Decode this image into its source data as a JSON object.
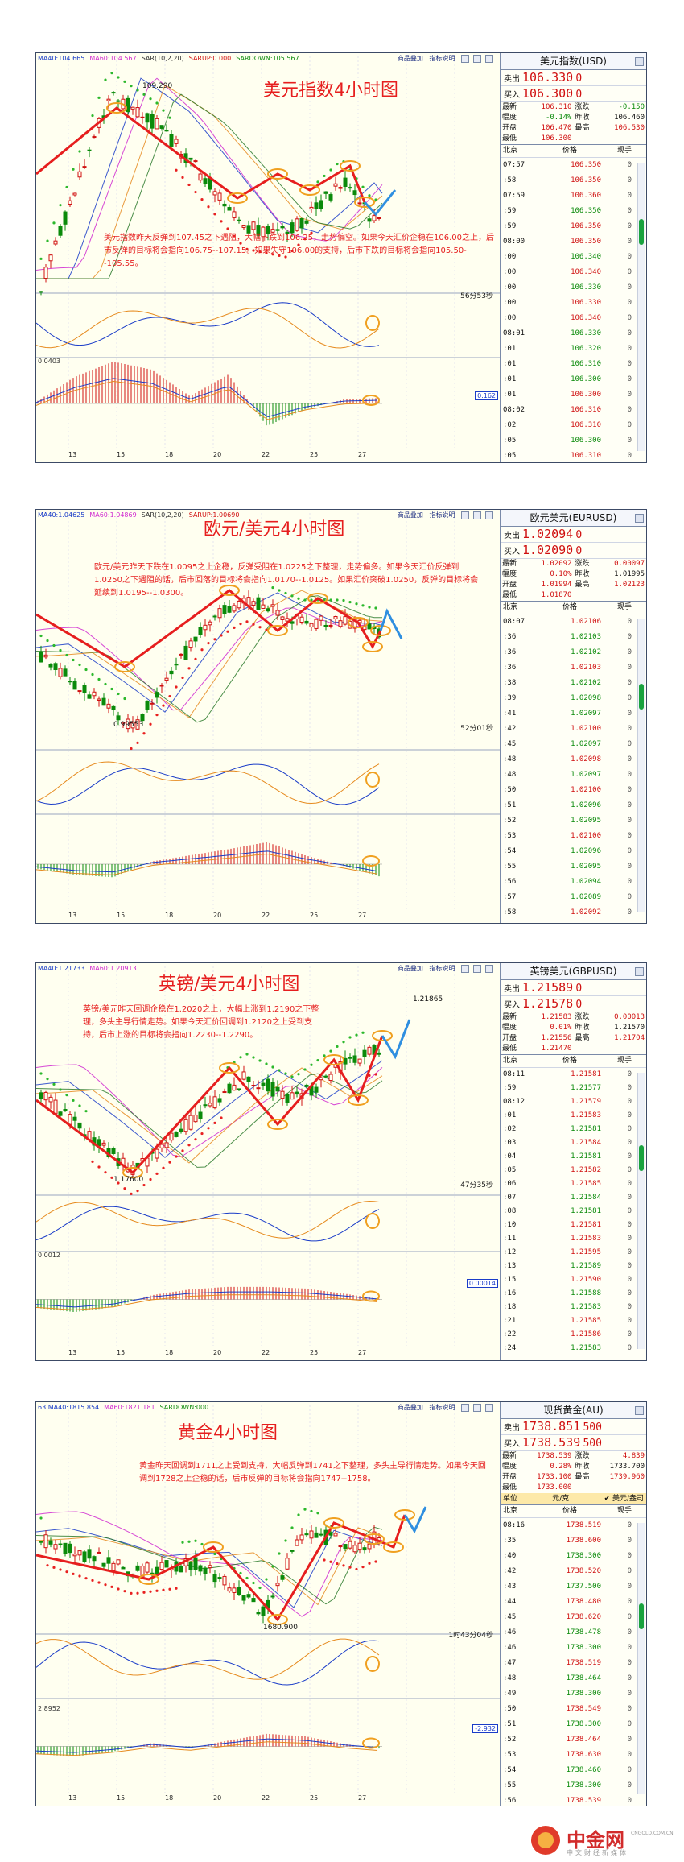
{
  "colors": {
    "up": "#d01010",
    "down": "#0a8a0a",
    "ma40": "#1a3cc8",
    "ma60": "#d028d0",
    "accent": "#e61e1e"
  },
  "toolbar": {
    "add": "商品叠加",
    "explain": "指标说明"
  },
  "panels": [
    {
      "id": "usd",
      "legend": [
        {
          "t": "MA40:104.665",
          "c": "#1a3cc8"
        },
        {
          "t": "MA60:104.567",
          "c": "#d028d0"
        },
        {
          "t": "SAR(10,2,20)",
          "c": "#333"
        },
        {
          "t": "SARUP:0.000",
          "c": "#d01010"
        },
        {
          "t": "SARDOWN:105.567",
          "c": "#0a8a0a"
        }
      ],
      "title": "美元指数4小时图",
      "annotation": "美元指数昨天反弹到107.45之下遇阻，大幅下跌到106.25，走势偏空。如果今天汇价企稳在106.00之上，后市反弹的目标将会指向106.75--107.15。如果失守106.00的支持，后市下跌的目标将会指向105.50--105.55。",
      "high_label": "109.290",
      "countdown": "56分53秒",
      "macd_label": "0.0403",
      "macd_value": "0.162",
      "xaxis": [
        "13",
        "15",
        "18",
        "20",
        "22",
        "25",
        "27"
      ],
      "quote": {
        "name": "美元指数(USD)",
        "sell_label": "卖出",
        "sell": "106.330",
        "sell_size": "0",
        "buy_label": "买入",
        "buy": "106.300",
        "buy_size": "0",
        "stats": [
          [
            "最新",
            "106.310",
            "涨跌",
            "-0.150"
          ],
          [
            "幅度",
            "-0.14%",
            "昨收",
            "106.460"
          ],
          [
            "开盘",
            "106.470",
            "最高",
            "106.530"
          ],
          [
            "最低",
            "106.300",
            "",
            ""
          ]
        ],
        "header": [
          "北京",
          "价格",
          "现手"
        ],
        "ticks": [
          [
            "07:57",
            "106.350",
            "0"
          ],
          [
            ":58",
            "106.350",
            "0"
          ],
          [
            "07:59",
            "106.360",
            "0"
          ],
          [
            ":59",
            "106.350",
            "0"
          ],
          [
            ":59",
            "106.350",
            "0"
          ],
          [
            "08:00",
            "106.350",
            "0"
          ],
          [
            ":00",
            "106.340",
            "0"
          ],
          [
            ":00",
            "106.340",
            "0"
          ],
          [
            ":00",
            "106.330",
            "0"
          ],
          [
            ":00",
            "106.330",
            "0"
          ],
          [
            ":00",
            "106.340",
            "0"
          ],
          [
            "08:01",
            "106.330",
            "0"
          ],
          [
            ":01",
            "106.320",
            "0"
          ],
          [
            ":01",
            "106.310",
            "0"
          ],
          [
            ":01",
            "106.300",
            "0"
          ],
          [
            ":01",
            "106.300",
            "0"
          ],
          [
            "08:02",
            "106.310",
            "0"
          ],
          [
            ":02",
            "106.310",
            "0"
          ],
          [
            ":05",
            "106.300",
            "0"
          ],
          [
            ":05",
            "106.310",
            "0"
          ]
        ]
      }
    },
    {
      "id": "eur",
      "legend": [
        {
          "t": "MA40:1.04625",
          "c": "#1a3cc8"
        },
        {
          "t": "MA60:1.04869",
          "c": "#d028d0"
        },
        {
          "t": "SAR(10,2,20)",
          "c": "#333"
        },
        {
          "t": "SARUP:1.00690",
          "c": "#d01010"
        }
      ],
      "title": "欧元/美元4小时图",
      "annotation": "欧元/美元昨天下跌在1.0095之上企稳，反弹受阻在1.0225之下整理，走势偏多。如果今天汇价反弹到1.0250之下遇阻的话，后市回落的目标将会指向1.0170--1.0125。如果汇价突破1.0250，反弹的目标将会延续到1.0195--1.0300。",
      "high_label": "0.99553",
      "countdown": "52分01秒",
      "macd_label": "",
      "macd_value": "",
      "xaxis": [
        "13",
        "15",
        "18",
        "20",
        "22",
        "25",
        "27"
      ],
      "quote": {
        "name": "欧元美元(EURUSD)",
        "sell_label": "卖出",
        "sell": "1.02094",
        "sell_size": "0",
        "buy_label": "买入",
        "buy": "1.02090",
        "buy_size": "0",
        "stats": [
          [
            "最新",
            "1.02092",
            "涨跌",
            "0.00097"
          ],
          [
            "幅度",
            "0.10%",
            "昨收",
            "1.01995"
          ],
          [
            "开盘",
            "1.01994",
            "最高",
            "1.02123"
          ],
          [
            "最低",
            "1.01870",
            "",
            ""
          ]
        ],
        "header": [
          "北京",
          "价格",
          "现手"
        ],
        "ticks": [
          [
            "08:07",
            "1.02106",
            "0"
          ],
          [
            ":36",
            "1.02103",
            "0"
          ],
          [
            ":36",
            "1.02102",
            "0"
          ],
          [
            ":36",
            "1.02103",
            "0"
          ],
          [
            ":38",
            "1.02102",
            "0"
          ],
          [
            ":39",
            "1.02098",
            "0"
          ],
          [
            ":41",
            "1.02097",
            "0"
          ],
          [
            ":42",
            "1.02100",
            "0"
          ],
          [
            ":45",
            "1.02097",
            "0"
          ],
          [
            ":48",
            "1.02098",
            "0"
          ],
          [
            ":48",
            "1.02097",
            "0"
          ],
          [
            ":50",
            "1.02100",
            "0"
          ],
          [
            ":51",
            "1.02096",
            "0"
          ],
          [
            ":52",
            "1.02095",
            "0"
          ],
          [
            ":53",
            "1.02100",
            "0"
          ],
          [
            ":54",
            "1.02096",
            "0"
          ],
          [
            ":55",
            "1.02095",
            "0"
          ],
          [
            ":56",
            "1.02094",
            "0"
          ],
          [
            ":57",
            "1.02089",
            "0"
          ],
          [
            ":58",
            "1.02092",
            "0"
          ]
        ]
      }
    },
    {
      "id": "gbp",
      "legend": [
        {
          "t": "MA40:1.21733",
          "c": "#1a3cc8"
        },
        {
          "t": "MA60:1.20913",
          "c": "#d028d0"
        }
      ],
      "title": "英镑/美元4小时图",
      "annotation": "英镑/美元昨天回调企稳在1.2020之上，大幅上涨到1.2190之下整理，多头主导行情走势。如果今天汇价回调到1.2120之上受到支持，后市上涨的目标将会指向1.2230--1.2290。",
      "high_label": "1.21865",
      "low_label": "1.17600",
      "countdown": "47分35秒",
      "macd_label": "0.0012",
      "macd_value": "0.00014",
      "xaxis": [
        "13",
        "15",
        "18",
        "20",
        "22",
        "25",
        "27"
      ],
      "quote": {
        "name": "英镑美元(GBPUSD)",
        "sell_label": "卖出",
        "sell": "1.21589",
        "sell_size": "0",
        "buy_label": "买入",
        "buy": "1.21578",
        "buy_size": "0",
        "stats": [
          [
            "最新",
            "1.21583",
            "涨跌",
            "0.00013"
          ],
          [
            "幅度",
            "0.01%",
            "昨收",
            "1.21570"
          ],
          [
            "开盘",
            "1.21556",
            "最高",
            "1.21704"
          ],
          [
            "最低",
            "1.21470",
            "",
            ""
          ]
        ],
        "header": [
          "北京",
          "价格",
          "现手"
        ],
        "ticks": [
          [
            "08:11",
            "1.21581",
            "0"
          ],
          [
            ":59",
            "1.21577",
            "0"
          ],
          [
            "08:12",
            "1.21579",
            "0"
          ],
          [
            ":01",
            "1.21583",
            "0"
          ],
          [
            ":02",
            "1.21581",
            "0"
          ],
          [
            ":03",
            "1.21584",
            "0"
          ],
          [
            ":04",
            "1.21581",
            "0"
          ],
          [
            ":05",
            "1.21582",
            "0"
          ],
          [
            ":06",
            "1.21585",
            "0"
          ],
          [
            ":07",
            "1.21584",
            "0"
          ],
          [
            ":08",
            "1.21581",
            "0"
          ],
          [
            ":10",
            "1.21581",
            "0"
          ],
          [
            ":11",
            "1.21583",
            "0"
          ],
          [
            ":12",
            "1.21595",
            "0"
          ],
          [
            ":13",
            "1.21589",
            "0"
          ],
          [
            ":15",
            "1.21590",
            "0"
          ],
          [
            ":16",
            "1.21588",
            "0"
          ],
          [
            ":18",
            "1.21583",
            "0"
          ],
          [
            ":21",
            "1.21585",
            "0"
          ],
          [
            ":22",
            "1.21586",
            "0"
          ],
          [
            ":24",
            "1.21583",
            "0"
          ]
        ]
      }
    },
    {
      "id": "xau",
      "legend": [
        {
          "t": "63 MA40:1815.854",
          "c": "#1a3cc8"
        },
        {
          "t": "MA60:1821.181",
          "c": "#d028d0"
        },
        {
          "t": "SARDOWN:000",
          "c": "#0a8a0a"
        }
      ],
      "title": "黄金4小时图",
      "annotation": "黄金昨天回调到1711之上受到支持，大幅反弹到1741之下整理，多头主导行情走势。如果今天回调到1728之上企稳的话，后市反弹的目标将会指向1747--1758。",
      "high_label": "",
      "low_label": "1680.900",
      "countdown": "1时43分04秒",
      "macd_label": "2.8952",
      "macd_value": "-2.932",
      "xaxis": [
        "13",
        "15",
        "18",
        "20",
        "22",
        "25",
        "27"
      ],
      "quote": {
        "name": "现货黄金(AU)",
        "sell_label": "卖出",
        "sell": "1738.851",
        "sell_size": "500",
        "buy_label": "买入",
        "buy": "1738.539",
        "buy_size": "500",
        "stats": [
          [
            "最新",
            "1738.539",
            "涨跌",
            "4.839"
          ],
          [
            "幅度",
            "0.28%",
            "昨收",
            "1733.700"
          ],
          [
            "开盘",
            "1733.100",
            "最高",
            "1739.960"
          ],
          [
            "最低",
            "1733.000",
            "",
            ""
          ]
        ],
        "unit": [
          "单位",
          "元/克",
          "美元/盎司"
        ],
        "header": [
          "北京",
          "价格",
          "现手"
        ],
        "ticks": [
          [
            "08:16",
            "1738.519",
            "0"
          ],
          [
            ":35",
            "1738.600",
            "0"
          ],
          [
            ":40",
            "1738.300",
            "0"
          ],
          [
            ":42",
            "1738.520",
            "0"
          ],
          [
            ":43",
            "1737.500",
            "0"
          ],
          [
            ":44",
            "1738.480",
            "0"
          ],
          [
            ":45",
            "1738.620",
            "0"
          ],
          [
            ":46",
            "1738.478",
            "0"
          ],
          [
            ":46",
            "1738.300",
            "0"
          ],
          [
            ":47",
            "1738.519",
            "0"
          ],
          [
            ":48",
            "1738.464",
            "0"
          ],
          [
            ":49",
            "1738.300",
            "0"
          ],
          [
            ":50",
            "1738.549",
            "0"
          ],
          [
            ":51",
            "1738.300",
            "0"
          ],
          [
            ":52",
            "1738.464",
            "0"
          ],
          [
            ":53",
            "1738.630",
            "0"
          ],
          [
            ":54",
            "1738.460",
            "0"
          ],
          [
            ":55",
            "1738.300",
            "0"
          ],
          [
            ":56",
            "1738.539",
            "0"
          ]
        ]
      }
    }
  ],
  "logo": {
    "name": "中金网",
    "domain": "CNGOLD.COM.CN",
    "slogan": "中文财经新媒体"
  },
  "chart_data": [
    {
      "type": "line",
      "title": "美元指数4小时图",
      "x": [
        "13",
        "15",
        "18",
        "20",
        "22",
        "25",
        "27"
      ],
      "series": [
        {
          "values": [
            106.8,
            109.29,
            108.7,
            107.3,
            106.4,
            106.55,
            106.31
          ]
        }
      ]
    },
    {
      "type": "line",
      "title": "欧元/美元4小时图",
      "x": [
        "13",
        "15",
        "18",
        "20",
        "22",
        "25",
        "27"
      ],
      "series": [
        {
          "values": [
            1.011,
            0.99553,
            1.0035,
            1.0145,
            1.0215,
            1.019,
            1.02092
          ]
        }
      ]
    },
    {
      "type": "line",
      "title": "英镑/美元4小时图",
      "x": [
        "13",
        "15",
        "18",
        "20",
        "22",
        "25",
        "27"
      ],
      "series": [
        {
          "values": [
            1.205,
            1.176,
            1.195,
            1.211,
            1.203,
            1.212,
            1.21583
          ]
        }
      ]
    },
    {
      "type": "line",
      "title": "黄金4小时图",
      "x": [
        "13",
        "15",
        "18",
        "20",
        "22",
        "25",
        "27"
      ],
      "series": [
        {
          "values": [
            1730,
            1715,
            1722,
            1700,
            1680.9,
            1735,
            1738.539
          ]
        }
      ]
    }
  ]
}
